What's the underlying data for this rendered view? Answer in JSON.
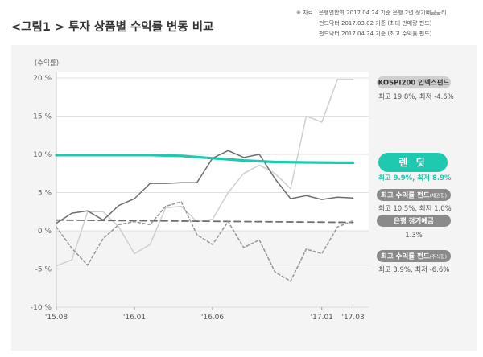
{
  "header": {
    "title": "<그림1 > 투자 상품별 수익률 변동 비교",
    "source_lines": [
      "※ 자료 : 은행연합회 2017.04.24 기준 은행 2년 정기예금금리",
      "펀드닥터 2017.03.02 기준 (최대 판매량 펀드)",
      "펀드닥터 2017.04.24 기준 (최고 수익률 펀드)"
    ]
  },
  "colors": {
    "renteed": "#1ec9b0",
    "kospi": "#cfcfcf",
    "max_fund": "#6e6e6e",
    "deposit": "#6e6e6e",
    "min_fund": "#9a9a9a",
    "badge_gray": "#8a8a8a",
    "badge_light": "#cfcfcf"
  },
  "chart_data": {
    "type": "line",
    "ylabel": "(수익률)",
    "ylim": [
      -10,
      20
    ],
    "yticks": [
      20,
      15,
      10,
      5,
      0,
      -5,
      -10
    ],
    "ytick_labels": [
      "20 %",
      "15 %",
      "10 %",
      "5 %",
      "0 %",
      "-5 %",
      "-10 %"
    ],
    "xlim": [
      0,
      20
    ],
    "xticks": [
      {
        "x": 0,
        "label": "'15.08"
      },
      {
        "x": 5,
        "label": "'16.01"
      },
      {
        "x": 10,
        "label": "'16.06"
      },
      {
        "x": 17,
        "label": "'17.01"
      },
      {
        "x": 19,
        "label": "'17.03"
      }
    ],
    "series": [
      {
        "name": "KOSPI200 인덱스펀드",
        "stat": "최고 19.8%, 최저 -4.6%",
        "style": "light",
        "x": [
          0,
          1,
          2,
          3,
          4,
          5,
          6,
          7,
          8,
          9,
          10,
          11,
          12,
          13,
          14,
          15,
          16,
          17,
          18,
          19
        ],
        "y": [
          -4.6,
          -3.8,
          2.5,
          2.5,
          0.5,
          -3.0,
          -1.8,
          3.0,
          3.2,
          1.2,
          1.5,
          5.0,
          7.5,
          8.6,
          7.5,
          5.5,
          15.0,
          14.2,
          19.8,
          19.8
        ]
      },
      {
        "name": "렌 딧",
        "stat": "최고 9.9%, 최저 8.9%",
        "style": "accent",
        "x": [
          0,
          2,
          4,
          6,
          8,
          10,
          12,
          14,
          16,
          18,
          19
        ],
        "y": [
          9.9,
          9.9,
          9.9,
          9.9,
          9.8,
          9.5,
          9.2,
          9.0,
          8.95,
          8.9,
          8.9
        ]
      },
      {
        "name": "최고 수익률 펀드",
        "name_suffix": "(채권형)",
        "stat": "최고 10.5%, 최저 1.0%",
        "style": "solid",
        "x": [
          0,
          1,
          2,
          3,
          4,
          5,
          6,
          7,
          8,
          9,
          10,
          11,
          12,
          13,
          14,
          15,
          16,
          17,
          18,
          19
        ],
        "y": [
          1.0,
          2.3,
          2.6,
          1.4,
          3.3,
          4.2,
          6.2,
          6.2,
          6.3,
          6.3,
          9.5,
          10.5,
          9.6,
          10.0,
          6.8,
          4.2,
          4.6,
          4.1,
          4.4,
          4.3
        ]
      },
      {
        "name": "은행 정기예금",
        "stat": "1.3%",
        "style": "dashed",
        "x": [
          0,
          19
        ],
        "y": [
          1.4,
          1.1
        ]
      },
      {
        "name": "최고 수익률 펀드",
        "name_suffix": "(주식형)",
        "stat": "최고 3.9%, 최저 -6.6%",
        "style": "dotted",
        "x": [
          0,
          1,
          2,
          3,
          4,
          5,
          6,
          7,
          8,
          9,
          10,
          11,
          12,
          13,
          14,
          15,
          16,
          17,
          18,
          19
        ],
        "y": [
          0.5,
          -2.3,
          -4.5,
          -1.0,
          0.8,
          1.2,
          0.8,
          3.2,
          3.8,
          -0.5,
          -1.8,
          1.2,
          -2.2,
          -1.2,
          -5.4,
          -6.6,
          -2.4,
          -3.0,
          0.5,
          1.3
        ]
      }
    ]
  }
}
